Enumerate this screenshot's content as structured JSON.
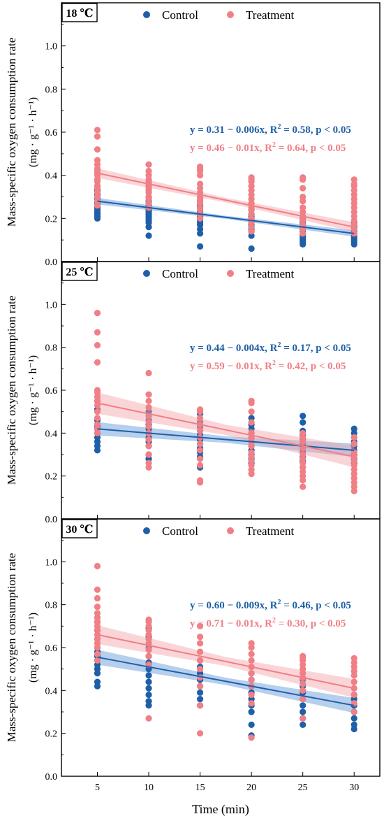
{
  "colors": {
    "control": "#1f5fa8",
    "treatment": "#f07f86",
    "control_band": "#5a95d6",
    "treatment_band": "#f4a2a8",
    "control_eq": "#1f5fa8",
    "treatment_eq": "#f07f86"
  },
  "axis": {
    "ylabel_line1": "Mass-specific oxygen consumption rate",
    "ylabel_line2": "(mg · g⁻¹ · h⁻¹)",
    "xlabel": "Time (min)",
    "xticks": [
      "5",
      "10",
      "15",
      "20",
      "25",
      "30"
    ],
    "yticks": [
      "0.0",
      "0.2",
      "0.4",
      "0.6",
      "0.8",
      "1.0"
    ]
  },
  "chart_data": [
    {
      "type": "scatter",
      "panel_label": "18 ℃",
      "x": [
        5,
        10,
        15,
        20,
        25,
        30
      ],
      "xlim": [
        1.5,
        32.5
      ],
      "ylim": [
        0,
        1.2
      ],
      "legend": [
        "Control",
        "Treatment"
      ],
      "series": [
        {
          "name": "Control",
          "equation": "y = 0.31 − 0.006x, R² = 0.58, p < 0.05",
          "fit": {
            "intercept": 0.31,
            "slope": -0.006,
            "band": 0.012
          },
          "points": {
            "5": [
              0.2,
              0.21,
              0.22,
              0.23,
              0.24,
              0.25,
              0.26,
              0.27,
              0.28,
              0.29,
              0.3,
              0.31,
              0.33,
              0.35
            ],
            "10": [
              0.12,
              0.16,
              0.18,
              0.19,
              0.2,
              0.21,
              0.22,
              0.23,
              0.24,
              0.25,
              0.26,
              0.28,
              0.3
            ],
            "15": [
              0.07,
              0.13,
              0.15,
              0.17,
              0.18,
              0.19,
              0.2,
              0.21,
              0.22,
              0.23,
              0.25,
              0.26,
              0.28
            ],
            "20": [
              0.06,
              0.12,
              0.14,
              0.15,
              0.16,
              0.17,
              0.18,
              0.19,
              0.2,
              0.21,
              0.22,
              0.24
            ],
            "25": [
              0.08,
              0.09,
              0.1,
              0.11,
              0.12,
              0.13,
              0.14,
              0.15,
              0.16,
              0.17,
              0.18,
              0.19,
              0.2
            ],
            "30": [
              0.08,
              0.09,
              0.1,
              0.11,
              0.12,
              0.13,
              0.14,
              0.15,
              0.16,
              0.17,
              0.18
            ]
          }
        },
        {
          "name": "Treatment",
          "equation": "y = 0.46 − 0.01x, R² = 0.64, p < 0.05",
          "fit": {
            "intercept": 0.46,
            "slope": -0.01,
            "band": 0.018
          },
          "points": {
            "5": [
              0.26,
              0.28,
              0.3,
              0.32,
              0.34,
              0.35,
              0.37,
              0.38,
              0.4,
              0.41,
              0.42,
              0.43,
              0.45,
              0.47,
              0.52,
              0.58,
              0.61
            ],
            "10": [
              0.25,
              0.27,
              0.29,
              0.3,
              0.32,
              0.33,
              0.34,
              0.35,
              0.36,
              0.37,
              0.38,
              0.4,
              0.42,
              0.45
            ],
            "15": [
              0.2,
              0.22,
              0.24,
              0.25,
              0.27,
              0.28,
              0.29,
              0.3,
              0.32,
              0.34,
              0.36,
              0.4,
              0.42,
              0.43,
              0.44
            ],
            "20": [
              0.14,
              0.16,
              0.18,
              0.2,
              0.22,
              0.24,
              0.25,
              0.27,
              0.29,
              0.31,
              0.33,
              0.35,
              0.37,
              0.38,
              0.39
            ],
            "25": [
              0.13,
              0.15,
              0.17,
              0.19,
              0.21,
              0.23,
              0.25,
              0.28,
              0.3,
              0.34,
              0.38,
              0.39
            ],
            "30": [
              0.13,
              0.15,
              0.17,
              0.19,
              0.21,
              0.23,
              0.25,
              0.27,
              0.29,
              0.31,
              0.33,
              0.35,
              0.36,
              0.38
            ]
          }
        }
      ]
    },
    {
      "type": "scatter",
      "panel_label": "25 ℃",
      "x": [
        5,
        10,
        15,
        20,
        25,
        30
      ],
      "xlim": [
        1.5,
        32.5
      ],
      "ylim": [
        0,
        1.2
      ],
      "legend": [
        "Control",
        "Treatment"
      ],
      "series": [
        {
          "name": "Control",
          "equation": "y = 0.44 − 0.004x, R² = 0.17, p < 0.05",
          "fit": {
            "intercept": 0.44,
            "slope": -0.004,
            "band": 0.025
          },
          "points": {
            "5": [
              0.32,
              0.34,
              0.36,
              0.38,
              0.4,
              0.42,
              0.43,
              0.44,
              0.46,
              0.51,
              0.55
            ],
            "10": [
              0.28,
              0.3,
              0.34,
              0.36,
              0.38,
              0.4,
              0.42,
              0.44,
              0.46,
              0.48,
              0.5
            ],
            "15": [
              0.24,
              0.29,
              0.31,
              0.33,
              0.35,
              0.37,
              0.39,
              0.41,
              0.43,
              0.45,
              0.49
            ],
            "20": [
              0.26,
              0.28,
              0.3,
              0.32,
              0.34,
              0.36,
              0.38,
              0.4,
              0.42,
              0.44,
              0.47
            ],
            "25": [
              0.24,
              0.27,
              0.29,
              0.31,
              0.33,
              0.35,
              0.37,
              0.39,
              0.41,
              0.45,
              0.48
            ],
            "30": [
              0.26,
              0.28,
              0.3,
              0.32,
              0.34,
              0.36,
              0.38,
              0.4,
              0.42
            ]
          }
        },
        {
          "name": "Treatment",
          "equation": "y = 0.59 − 0.01x, R² = 0.42, p < 0.05",
          "fit": {
            "intercept": 0.59,
            "slope": -0.01,
            "band": 0.04
          },
          "points": {
            "5": [
              0.4,
              0.42,
              0.44,
              0.47,
              0.5,
              0.53,
              0.55,
              0.57,
              0.59,
              0.6,
              0.73,
              0.81,
              0.87,
              0.96
            ],
            "10": [
              0.24,
              0.26,
              0.3,
              0.34,
              0.37,
              0.4,
              0.43,
              0.45,
              0.48,
              0.52,
              0.55,
              0.58,
              0.68
            ],
            "15": [
              0.17,
              0.18,
              0.25,
              0.28,
              0.32,
              0.35,
              0.38,
              0.41,
              0.44,
              0.47,
              0.5,
              0.51
            ],
            "20": [
              0.21,
              0.23,
              0.25,
              0.27,
              0.29,
              0.31,
              0.34,
              0.36,
              0.38,
              0.4,
              0.45,
              0.5,
              0.54,
              0.55
            ],
            "25": [
              0.15,
              0.18,
              0.2,
              0.22,
              0.24,
              0.26,
              0.28,
              0.3,
              0.33,
              0.36,
              0.38,
              0.4
            ],
            "30": [
              0.13,
              0.15,
              0.17,
              0.19,
              0.21,
              0.23,
              0.25,
              0.27,
              0.29,
              0.31,
              0.35,
              0.38
            ]
          }
        }
      ]
    },
    {
      "type": "scatter",
      "panel_label": "30 ℃",
      "x": [
        5,
        10,
        15,
        20,
        25,
        30
      ],
      "xlim": [
        1.5,
        32.5
      ],
      "ylim": [
        0,
        1.2
      ],
      "legend": [
        "Control",
        "Treatment"
      ],
      "series": [
        {
          "name": "Control",
          "equation": "y = 0.60 − 0.009x, R² = 0.46, p < 0.05",
          "fit": {
            "intercept": 0.6,
            "slope": -0.009,
            "band": 0.028
          },
          "points": {
            "5": [
              0.42,
              0.44,
              0.48,
              0.5,
              0.52,
              0.54,
              0.56,
              0.58,
              0.6,
              0.64,
              0.68,
              0.72
            ],
            "10": [
              0.33,
              0.35,
              0.38,
              0.41,
              0.44,
              0.47,
              0.5,
              0.53,
              0.56,
              0.6,
              0.65,
              0.69
            ],
            "15": [
              0.33,
              0.36,
              0.39,
              0.42,
              0.45,
              0.48,
              0.51,
              0.54
            ],
            "20": [
              0.19,
              0.24,
              0.3,
              0.33,
              0.36,
              0.39,
              0.42,
              0.45,
              0.48
            ],
            "25": [
              0.24,
              0.27,
              0.3,
              0.33,
              0.36,
              0.39,
              0.42,
              0.45
            ],
            "30": [
              0.22,
              0.24,
              0.27,
              0.3,
              0.33,
              0.36,
              0.38
            ]
          }
        },
        {
          "name": "Treatment",
          "equation": "y = 0.71 − 0.01x, R² = 0.30, p < 0.05",
          "fit": {
            "intercept": 0.71,
            "slope": -0.01,
            "band": 0.035
          },
          "points": {
            "5": [
              0.54,
              0.57,
              0.6,
              0.62,
              0.64,
              0.66,
              0.68,
              0.7,
              0.72,
              0.74,
              0.76,
              0.79,
              0.83,
              0.87,
              0.98
            ],
            "10": [
              0.27,
              0.52,
              0.56,
              0.59,
              0.62,
              0.64,
              0.66,
              0.68,
              0.7,
              0.72,
              0.73
            ],
            "15": [
              0.2,
              0.33,
              0.42,
              0.46,
              0.5,
              0.54,
              0.58,
              0.62,
              0.65,
              0.7
            ],
            "20": [
              0.18,
              0.34,
              0.38,
              0.42,
              0.45,
              0.48,
              0.51,
              0.54,
              0.57,
              0.6,
              0.62
            ],
            "25": [
              0.27,
              0.36,
              0.4,
              0.43,
              0.46,
              0.48,
              0.5,
              0.52,
              0.54,
              0.55,
              0.56
            ],
            "30": [
              0.3,
              0.34,
              0.38,
              0.41,
              0.44,
              0.47,
              0.49,
              0.51,
              0.53,
              0.55
            ]
          }
        }
      ]
    }
  ]
}
